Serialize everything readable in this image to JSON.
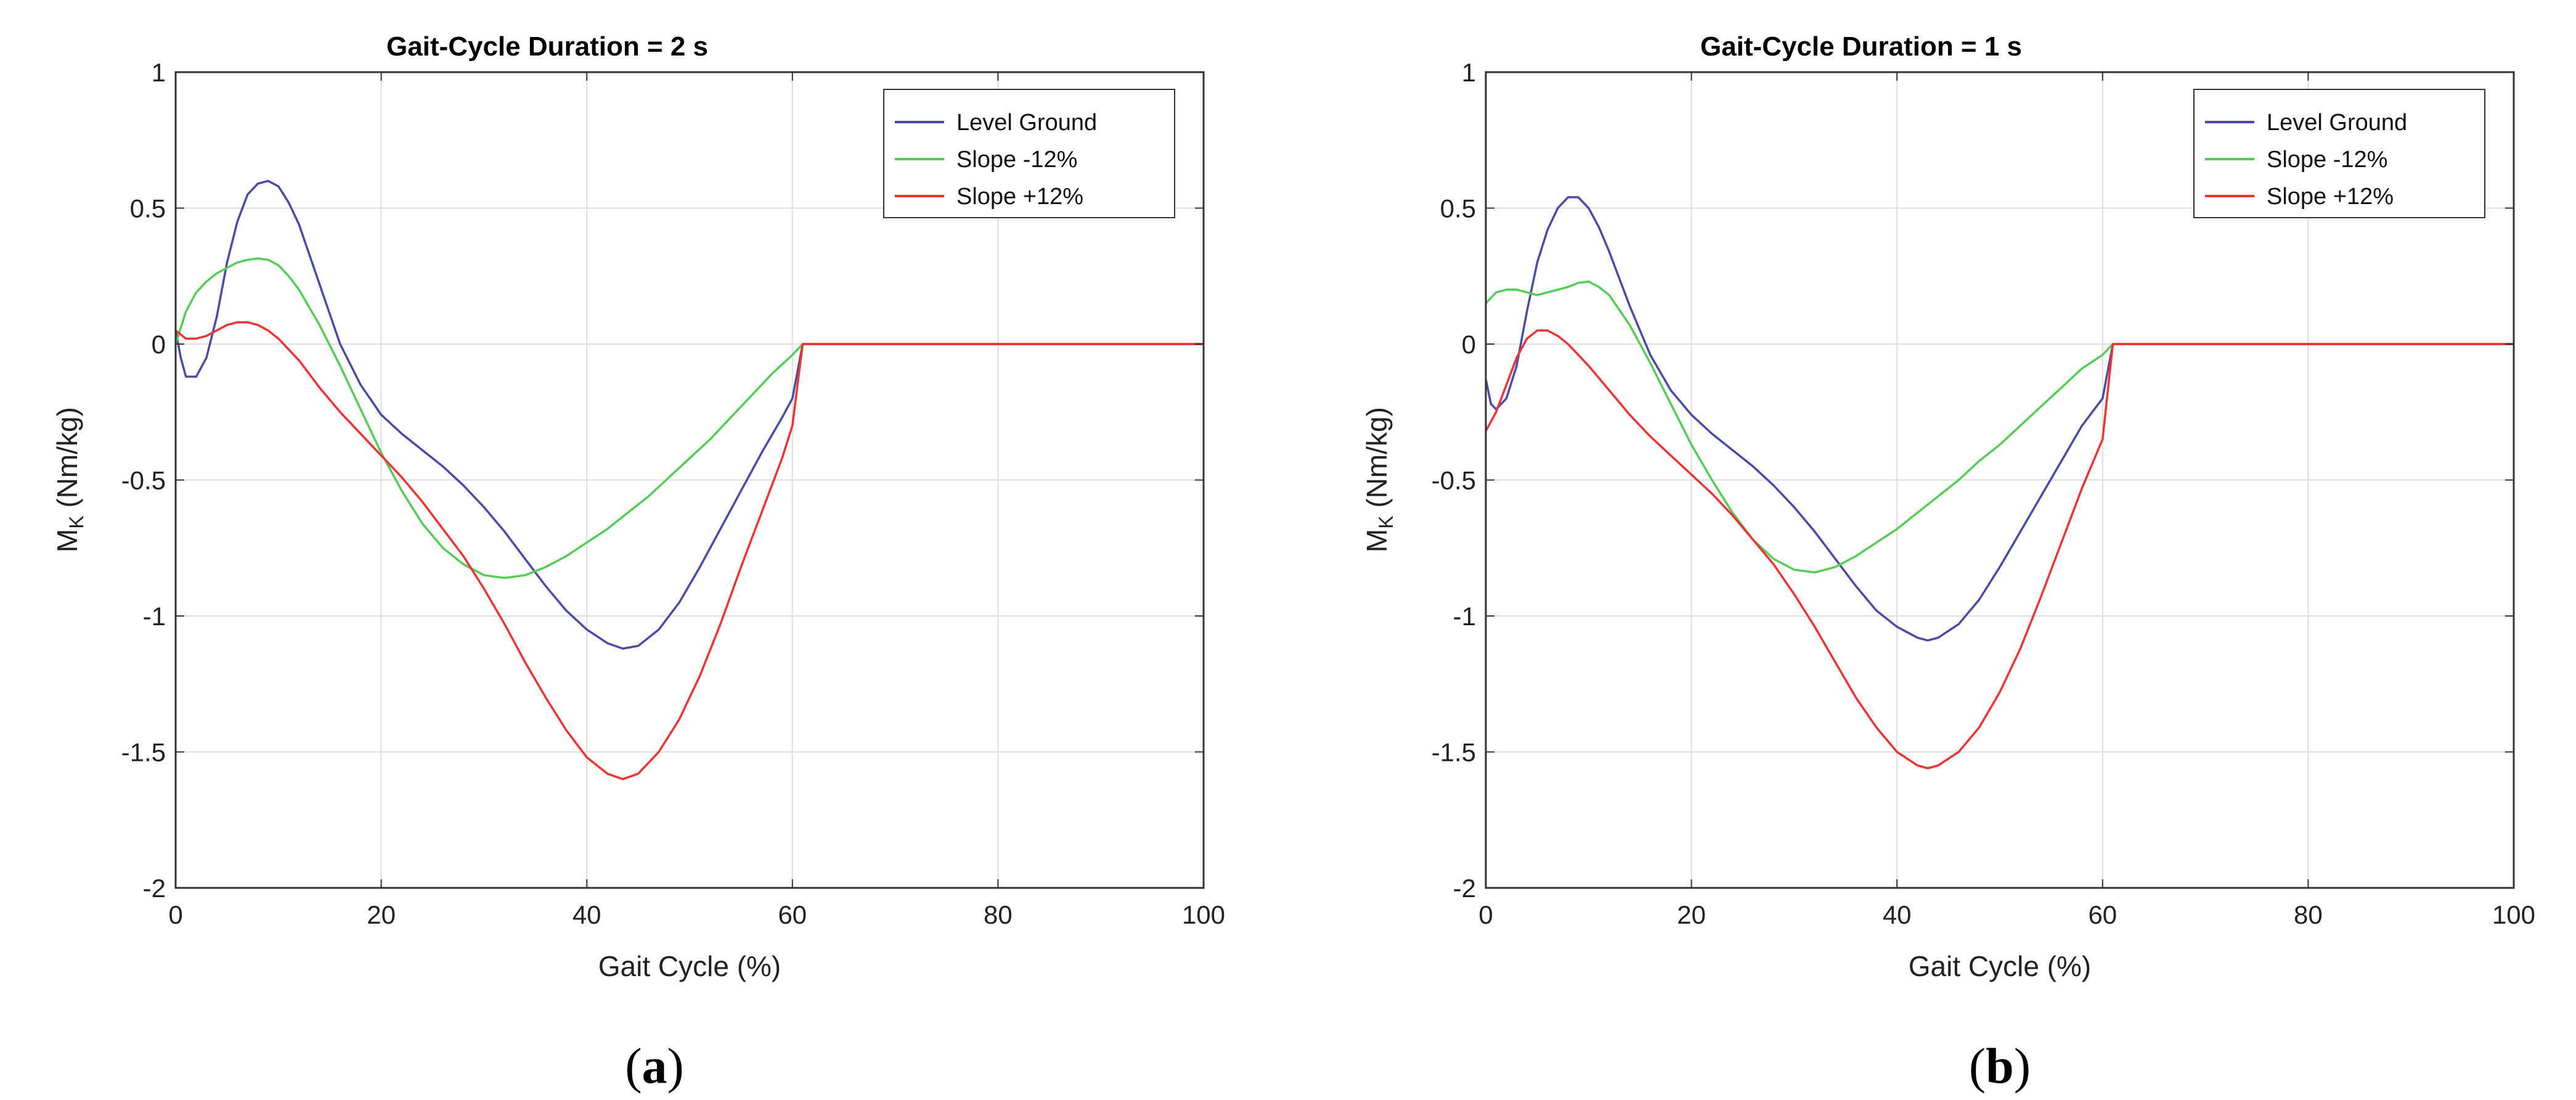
{
  "chart_data": [
    {
      "type": "line",
      "panel_label_prefix": "(",
      "panel_letter": "a",
      "panel_label_suffix": ")",
      "title": "Gait-Cycle Duration = 2 s",
      "xlabel": "Gait Cycle (%)",
      "ylabel_main": "M",
      "ylabel_sub": "K",
      "ylabel_unit": " (Nm/kg)",
      "xlim": [
        0,
        100
      ],
      "ylim": [
        -2,
        1
      ],
      "xticks": [
        0,
        20,
        40,
        60,
        80,
        100
      ],
      "yticks": [
        -2,
        -1.5,
        -1,
        -0.5,
        0,
        0.5,
        1
      ],
      "xtick_labels": [
        "0",
        "20",
        "40",
        "60",
        "80",
        "100"
      ],
      "ytick_labels": [
        "-2",
        "-1.5",
        "-1",
        "-0.5",
        "0",
        "0.5",
        "1"
      ],
      "grid": true,
      "legend_position": "top-right",
      "series": [
        {
          "name": "Level Ground",
          "color": "#4a4aa8",
          "x": [
            0,
            0.5,
            1,
            2,
            3,
            4,
            5,
            6,
            7,
            8,
            9,
            10,
            11,
            12,
            14,
            16,
            18,
            20,
            22,
            24,
            26,
            28,
            30,
            32,
            34,
            36,
            38,
            40,
            42,
            43.5,
            45,
            47,
            49,
            51,
            53,
            55,
            57,
            59,
            60,
            61,
            100
          ],
          "y": [
            0.05,
            -0.05,
            -0.12,
            -0.12,
            -0.05,
            0.1,
            0.3,
            0.45,
            0.55,
            0.59,
            0.6,
            0.58,
            0.52,
            0.44,
            0.22,
            0.0,
            -0.15,
            -0.26,
            -0.33,
            -0.39,
            -0.45,
            -0.52,
            -0.6,
            -0.69,
            -0.79,
            -0.89,
            -0.98,
            -1.05,
            -1.1,
            -1.12,
            -1.11,
            -1.05,
            -0.95,
            -0.82,
            -0.68,
            -0.54,
            -0.4,
            -0.27,
            -0.2,
            0.0,
            0.0
          ]
        },
        {
          "name": "Slope -12%",
          "color": "#55cc55",
          "x": [
            0,
            1,
            2,
            3,
            4,
            5,
            6,
            7,
            8,
            9,
            10,
            11,
            12,
            14,
            16,
            18,
            20,
            22,
            24,
            26,
            28,
            30,
            32,
            34,
            36,
            38,
            40,
            42,
            44,
            46,
            48,
            50,
            52,
            54,
            56,
            58,
            60,
            61,
            100
          ],
          "y": [
            0.0,
            0.12,
            0.19,
            0.23,
            0.26,
            0.28,
            0.3,
            0.31,
            0.315,
            0.31,
            0.29,
            0.25,
            0.2,
            0.07,
            -0.08,
            -0.24,
            -0.4,
            -0.54,
            -0.66,
            -0.75,
            -0.81,
            -0.85,
            -0.86,
            -0.85,
            -0.82,
            -0.78,
            -0.73,
            -0.68,
            -0.62,
            -0.56,
            -0.49,
            -0.42,
            -0.35,
            -0.27,
            -0.19,
            -0.11,
            -0.04,
            0.0,
            0.0
          ]
        },
        {
          "name": "Slope +12%",
          "color": "#ee3333",
          "x": [
            0,
            1,
            2,
            3,
            4,
            5,
            6,
            7,
            8,
            9,
            10,
            12,
            14,
            16,
            18,
            20,
            22,
            24,
            26,
            28,
            30,
            32,
            34,
            36,
            38,
            40,
            42,
            43.5,
            45,
            47,
            49,
            51,
            53,
            55,
            57,
            59,
            60,
            61,
            100
          ],
          "y": [
            0.05,
            0.02,
            0.02,
            0.03,
            0.05,
            0.07,
            0.08,
            0.08,
            0.07,
            0.05,
            0.02,
            -0.06,
            -0.16,
            -0.25,
            -0.33,
            -0.41,
            -0.49,
            -0.58,
            -0.68,
            -0.78,
            -0.9,
            -1.03,
            -1.17,
            -1.3,
            -1.42,
            -1.52,
            -1.58,
            -1.6,
            -1.58,
            -1.5,
            -1.38,
            -1.22,
            -1.03,
            -0.82,
            -0.62,
            -0.42,
            -0.3,
            0.0,
            0.0
          ]
        }
      ]
    },
    {
      "type": "line",
      "panel_label_prefix": "(",
      "panel_letter": "b",
      "panel_label_suffix": ")",
      "title": "Gait-Cycle Duration = 1 s",
      "xlabel": "Gait Cycle (%)",
      "ylabel_main": "M",
      "ylabel_sub": "K",
      "ylabel_unit": " (Nm/kg)",
      "xlim": [
        0,
        100
      ],
      "ylim": [
        -2,
        1
      ],
      "xticks": [
        0,
        20,
        40,
        60,
        80,
        100
      ],
      "yticks": [
        -2,
        -1.5,
        -1,
        -0.5,
        0,
        0.5,
        1
      ],
      "xtick_labels": [
        "0",
        "20",
        "40",
        "60",
        "80",
        "100"
      ],
      "ytick_labels": [
        "-2",
        "-1.5",
        "-1",
        "-0.5",
        "0",
        "0.5",
        "1"
      ],
      "grid": true,
      "legend_position": "top-right",
      "series": [
        {
          "name": "Level Ground",
          "color": "#4a4aa8",
          "x": [
            0,
            0.5,
            1,
            2,
            3,
            4,
            5,
            6,
            7,
            8,
            9,
            10,
            11,
            12,
            14,
            16,
            18,
            20,
            22,
            24,
            26,
            28,
            30,
            32,
            34,
            36,
            38,
            40,
            42,
            43,
            44,
            46,
            48,
            50,
            52,
            54,
            56,
            58,
            60,
            61,
            100
          ],
          "y": [
            -0.13,
            -0.22,
            -0.24,
            -0.2,
            -0.08,
            0.12,
            0.3,
            0.42,
            0.5,
            0.54,
            0.54,
            0.5,
            0.43,
            0.34,
            0.14,
            -0.04,
            -0.17,
            -0.26,
            -0.33,
            -0.39,
            -0.45,
            -0.52,
            -0.6,
            -0.69,
            -0.79,
            -0.89,
            -0.98,
            -1.04,
            -1.08,
            -1.09,
            -1.08,
            -1.03,
            -0.94,
            -0.82,
            -0.69,
            -0.56,
            -0.43,
            -0.3,
            -0.2,
            0.0,
            0.0
          ]
        },
        {
          "name": "Slope -12%",
          "color": "#55cc55",
          "x": [
            0,
            1,
            2,
            3,
            4,
            5,
            6,
            7,
            8,
            9,
            10,
            11,
            12,
            14,
            16,
            18,
            20,
            22,
            24,
            26,
            28,
            30,
            32,
            34,
            36,
            38,
            40,
            42,
            44,
            46,
            48,
            50,
            52,
            54,
            56,
            58,
            60,
            61,
            100
          ],
          "y": [
            0.15,
            0.19,
            0.2,
            0.2,
            0.19,
            0.18,
            0.19,
            0.2,
            0.21,
            0.225,
            0.23,
            0.21,
            0.18,
            0.07,
            -0.07,
            -0.22,
            -0.37,
            -0.5,
            -0.62,
            -0.72,
            -0.79,
            -0.83,
            -0.84,
            -0.82,
            -0.78,
            -0.73,
            -0.68,
            -0.62,
            -0.56,
            -0.5,
            -0.43,
            -0.37,
            -0.3,
            -0.23,
            -0.16,
            -0.09,
            -0.04,
            0.0,
            0.0
          ]
        },
        {
          "name": "Slope +12%",
          "color": "#ee3333",
          "x": [
            0,
            1,
            2,
            3,
            4,
            5,
            6,
            7,
            8,
            9,
            10,
            12,
            14,
            16,
            18,
            20,
            22,
            24,
            26,
            28,
            30,
            32,
            34,
            36,
            38,
            40,
            42,
            43,
            44,
            46,
            48,
            50,
            52,
            54,
            56,
            58,
            60,
            61,
            100
          ],
          "y": [
            -0.32,
            -0.25,
            -0.15,
            -0.05,
            0.02,
            0.05,
            0.05,
            0.03,
            0.0,
            -0.04,
            -0.08,
            -0.17,
            -0.26,
            -0.34,
            -0.41,
            -0.48,
            -0.55,
            -0.63,
            -0.72,
            -0.81,
            -0.92,
            -1.04,
            -1.17,
            -1.3,
            -1.41,
            -1.5,
            -1.55,
            -1.56,
            -1.55,
            -1.5,
            -1.41,
            -1.28,
            -1.12,
            -0.93,
            -0.73,
            -0.53,
            -0.35,
            0.0,
            0.0
          ]
        }
      ]
    }
  ]
}
